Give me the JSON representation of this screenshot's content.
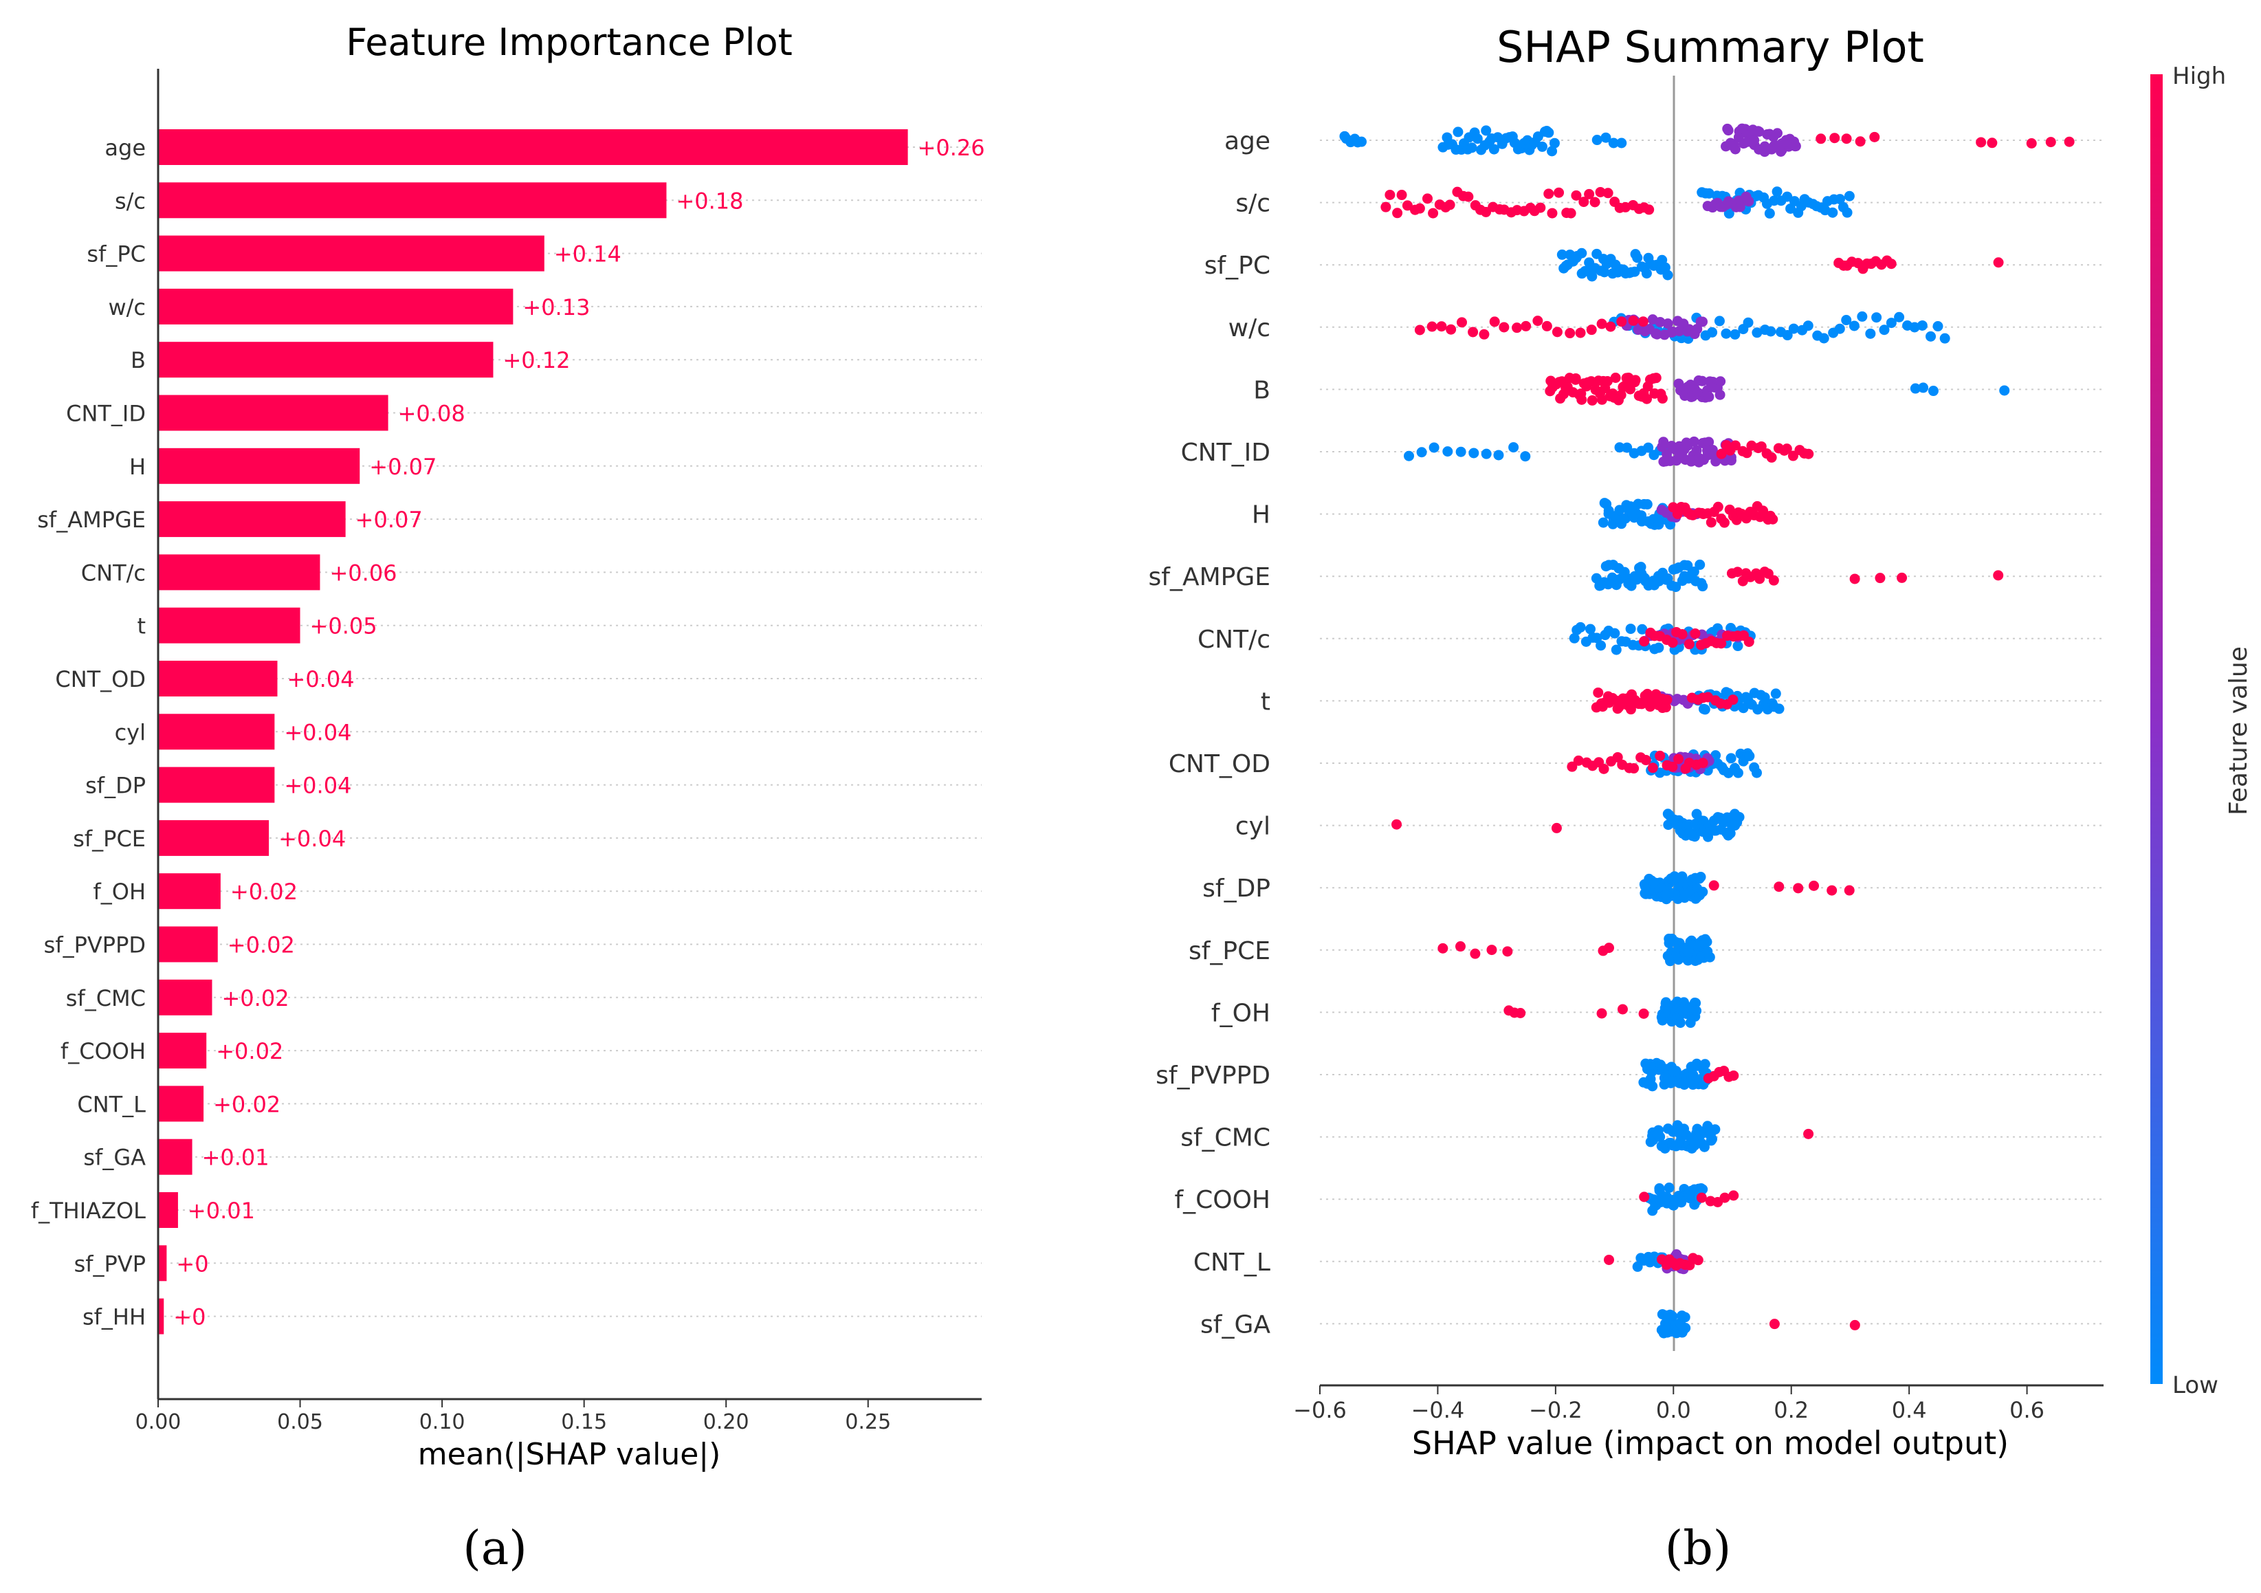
{
  "chart_data": [
    {
      "type": "bar",
      "orientation": "horizontal",
      "title": "Feature Importance Plot",
      "xlabel": "mean(|SHAP value|)",
      "ylabel": "",
      "caption": "(a)",
      "xlim": [
        0,
        0.29
      ],
      "xticks": [
        "0.00",
        "0.05",
        "0.10",
        "0.15",
        "0.20",
        "0.25"
      ],
      "bar_color": "#ff0051",
      "grid": "dotted horizontal lines",
      "categories": [
        "age",
        "s/c",
        "sf_PC",
        "w/c",
        "B",
        "CNT_ID",
        "H",
        "sf_AMPGE",
        "CNT/c",
        "t",
        "CNT_OD",
        "cyl",
        "sf_DP",
        "sf_PCE",
        "f_OH",
        "sf_PVPPD",
        "sf_CMC",
        "f_COOH",
        "CNT_L",
        "sf_GA",
        "f_THIAZOL",
        "sf_PVP",
        "sf_HH"
      ],
      "values": [
        0.264,
        0.179,
        0.136,
        0.125,
        0.118,
        0.081,
        0.071,
        0.066,
        0.057,
        0.05,
        0.042,
        0.041,
        0.041,
        0.039,
        0.022,
        0.021,
        0.019,
        0.017,
        0.016,
        0.012,
        0.007,
        0.003,
        0.002
      ],
      "value_labels": [
        "+0.26",
        "+0.18",
        "+0.14",
        "+0.13",
        "+0.12",
        "+0.08",
        "+0.07",
        "+0.07",
        "+0.06",
        "+0.05",
        "+0.04",
        "+0.04",
        "+0.04",
        "+0.04",
        "+0.02",
        "+0.02",
        "+0.02",
        "+0.02",
        "+0.02",
        "+0.01",
        "+0.01",
        "+0",
        "+0"
      ]
    },
    {
      "type": "scatter",
      "subtype": "beeswarm",
      "title": "SHAP Summary Plot",
      "xlabel": "SHAP value (impact on model output)",
      "ylabel": "",
      "caption": "(b)",
      "xlim": [
        -0.6,
        0.73
      ],
      "xticks": [
        "−0.6",
        "−0.4",
        "−0.2",
        "0.0",
        "0.2",
        "0.4",
        "0.6"
      ],
      "zero_line": true,
      "grid": "dotted horizontal lines",
      "colorbar": {
        "label": "Feature value",
        "high_label": "High",
        "low_label": "Low",
        "high_color": "#ff0051",
        "mid_color": "#8a30c8",
        "low_color": "#008bfb"
      },
      "categories": [
        "age",
        "s/c",
        "sf_PC",
        "w/c",
        "B",
        "CNT_ID",
        "H",
        "sf_AMPGE",
        "CNT/c",
        "t",
        "CNT_OD",
        "cyl",
        "sf_DP",
        "sf_PCE",
        "f_OH",
        "sf_PVPPD",
        "sf_CMC",
        "f_COOH",
        "CNT_L",
        "sf_GA"
      ],
      "series": [
        {
          "feature": "age",
          "low_segments": [
            [
              -0.56,
              -0.53,
              6
            ],
            [
              -0.39,
              -0.2,
              40
            ],
            [
              -0.13,
              -0.09,
              4
            ]
          ],
          "mid_segments": [
            [
              0.09,
              0.21,
              45
            ]
          ],
          "high_segments": [
            [
              0.25,
              0.34,
              5
            ],
            [
              0.52,
              0.54,
              2
            ],
            [
              0.61,
              0.67,
              3
            ]
          ]
        },
        {
          "feature": "s/c",
          "low_segments": [
            [
              0.05,
              0.3,
              40
            ]
          ],
          "mid_segments": [
            [
              0.06,
              0.13,
              15
            ]
          ],
          "high_segments": [
            [
              -0.49,
              -0.04,
              45
            ]
          ]
        },
        {
          "feature": "sf_PC",
          "low_segments": [
            [
              -0.19,
              -0.01,
              45
            ]
          ],
          "mid_segments": [],
          "high_segments": [
            [
              0.28,
              0.37,
              12
            ],
            [
              0.55,
              0.55,
              1
            ]
          ]
        },
        {
          "feature": "w/c",
          "low_segments": [
            [
              -0.1,
              0.46,
              45
            ]
          ],
          "mid_segments": [
            [
              -0.08,
              0.05,
              25
            ]
          ],
          "high_segments": [
            [
              -0.43,
              -0.05,
              22
            ]
          ]
        },
        {
          "feature": "B",
          "low_segments": [
            [
              0.41,
              0.44,
              3
            ],
            [
              0.56,
              0.56,
              1
            ]
          ],
          "mid_segments": [
            [
              0.01,
              0.08,
              30
            ]
          ],
          "high_segments": [
            [
              -0.21,
              -0.02,
              55
            ]
          ]
        },
        {
          "feature": "CNT_ID",
          "low_segments": [
            [
              -0.45,
              -0.25,
              10
            ],
            [
              -0.09,
              -0.01,
              8
            ]
          ],
          "mid_segments": [
            [
              -0.02,
              0.1,
              45
            ]
          ],
          "high_segments": [
            [
              0.08,
              0.23,
              18
            ]
          ]
        },
        {
          "feature": "H",
          "low_segments": [
            [
              -0.12,
              0.0,
              40
            ]
          ],
          "mid_segments": [
            [
              -0.02,
              0.04,
              8
            ]
          ],
          "high_segments": [
            [
              0.0,
              0.17,
              30
            ]
          ]
        },
        {
          "feature": "sf_AMPGE",
          "low_segments": [
            [
              -0.13,
              0.05,
              50
            ]
          ],
          "mid_segments": [],
          "high_segments": [
            [
              0.1,
              0.17,
              10
            ],
            [
              0.31,
              0.39,
              3
            ],
            [
              0.55,
              0.55,
              1
            ]
          ]
        },
        {
          "feature": "CNT/c",
          "low_segments": [
            [
              -0.17,
              0.13,
              45
            ]
          ],
          "mid_segments": [
            [
              -0.05,
              0.12,
              15
            ]
          ],
          "high_segments": [
            [
              -0.05,
              0.13,
              20
            ]
          ]
        },
        {
          "feature": "t",
          "low_segments": [
            [
              0.04,
              0.18,
              30
            ]
          ],
          "mid_segments": [
            [
              -0.02,
              0.03,
              8
            ]
          ],
          "high_segments": [
            [
              -0.13,
              -0.01,
              35
            ],
            [
              0.03,
              0.1,
              8
            ]
          ]
        },
        {
          "feature": "CNT_OD",
          "low_segments": [
            [
              -0.04,
              0.14,
              35
            ]
          ],
          "mid_segments": [
            [
              0.0,
              0.06,
              18
            ]
          ],
          "high_segments": [
            [
              -0.17,
              0.05,
              22
            ]
          ]
        },
        {
          "feature": "cyl",
          "low_segments": [
            [
              -0.01,
              0.11,
              55
            ]
          ],
          "mid_segments": [],
          "high_segments": [
            [
              -0.47,
              -0.47,
              1
            ],
            [
              -0.2,
              -0.2,
              1
            ]
          ]
        },
        {
          "feature": "sf_DP",
          "low_segments": [
            [
              -0.05,
              0.05,
              60
            ]
          ],
          "mid_segments": [],
          "high_segments": [
            [
              0.07,
              0.07,
              1
            ],
            [
              0.18,
              0.3,
              5
            ]
          ]
        },
        {
          "feature": "sf_PCE",
          "low_segments": [
            [
              -0.01,
              0.06,
              45
            ]
          ],
          "mid_segments": [],
          "high_segments": [
            [
              -0.39,
              -0.28,
              5
            ],
            [
              -0.12,
              -0.11,
              2
            ]
          ]
        },
        {
          "feature": "f_OH",
          "low_segments": [
            [
              -0.02,
              0.04,
              40
            ]
          ],
          "mid_segments": [],
          "high_segments": [
            [
              -0.28,
              -0.26,
              3
            ],
            [
              -0.12,
              -0.05,
              3
            ]
          ]
        },
        {
          "feature": "sf_PVPPD",
          "low_segments": [
            [
              -0.05,
              0.06,
              50
            ]
          ],
          "mid_segments": [],
          "high_segments": [
            [
              0.06,
              0.1,
              6
            ]
          ]
        },
        {
          "feature": "sf_CMC",
          "low_segments": [
            [
              -0.04,
              0.07,
              45
            ]
          ],
          "mid_segments": [],
          "high_segments": [
            [
              0.23,
              0.23,
              1
            ]
          ]
        },
        {
          "feature": "f_COOH",
          "low_segments": [
            [
              -0.04,
              0.05,
              45
            ]
          ],
          "mid_segments": [],
          "high_segments": [
            [
              -0.05,
              -0.05,
              1
            ],
            [
              0.05,
              0.1,
              5
            ]
          ]
        },
        {
          "feature": "CNT_L",
          "low_segments": [
            [
              -0.06,
              0.0,
              12
            ]
          ],
          "mid_segments": [
            [
              -0.01,
              0.02,
              25
            ]
          ],
          "high_segments": [
            [
              -0.11,
              -0.11,
              1
            ],
            [
              -0.02,
              0.04,
              10
            ]
          ]
        },
        {
          "feature": "sf_GA",
          "low_segments": [
            [
              -0.02,
              0.02,
              35
            ]
          ],
          "mid_segments": [],
          "high_segments": [
            [
              0.17,
              0.17,
              1
            ],
            [
              0.31,
              0.31,
              1
            ]
          ]
        }
      ]
    }
  ]
}
